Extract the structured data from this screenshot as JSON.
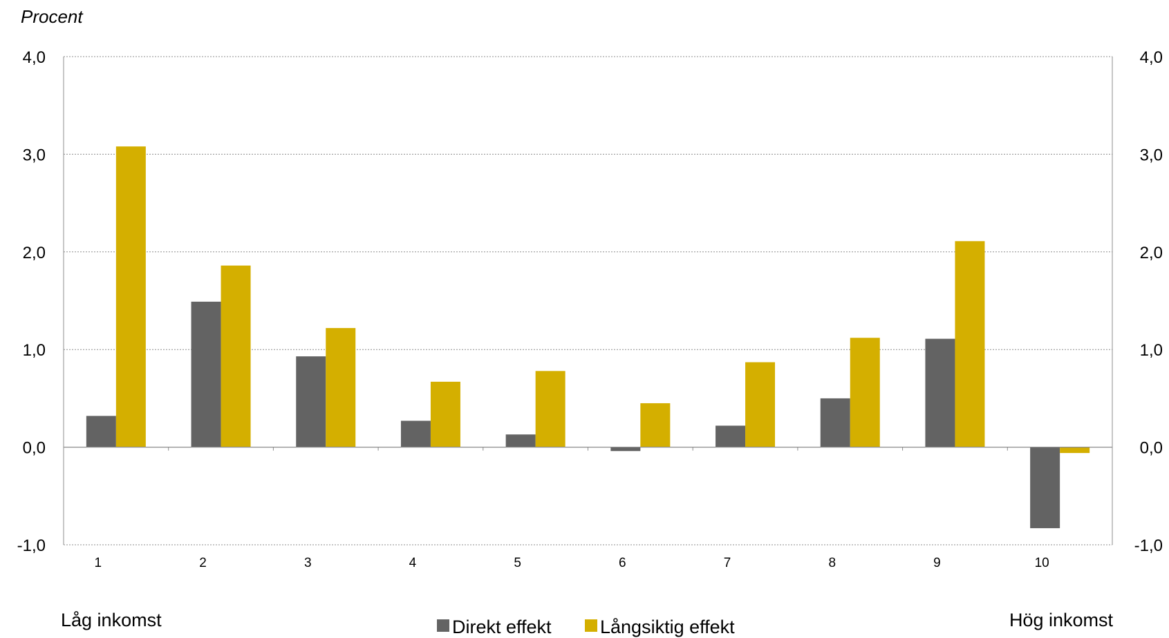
{
  "chart_data": {
    "type": "bar",
    "unit_label": "Procent",
    "categories": [
      "1",
      "2",
      "3",
      "4",
      "5",
      "6",
      "7",
      "8",
      "9",
      "10"
    ],
    "series": [
      {
        "name": "Direkt effekt",
        "color": "#636363",
        "values": [
          0.32,
          1.49,
          0.93,
          0.27,
          0.13,
          -0.04,
          0.22,
          0.5,
          1.11,
          -0.83
        ]
      },
      {
        "name": "Långsiktig effekt",
        "color": "#d4af00",
        "values": [
          3.08,
          1.86,
          1.22,
          0.67,
          0.78,
          0.45,
          0.87,
          1.12,
          2.11,
          -0.06
        ]
      }
    ],
    "y_ticks": [
      "4,0",
      "3,0",
      "2,0",
      "1,0",
      "0,0",
      "-1,0"
    ],
    "y_tick_values": [
      4,
      3,
      2,
      1,
      0,
      -1
    ],
    "ylim": [
      -1,
      4
    ],
    "grid": true,
    "left_footer": "Låg inkomst",
    "right_footer": "Hög inkomst",
    "legend_position": "bottom"
  }
}
